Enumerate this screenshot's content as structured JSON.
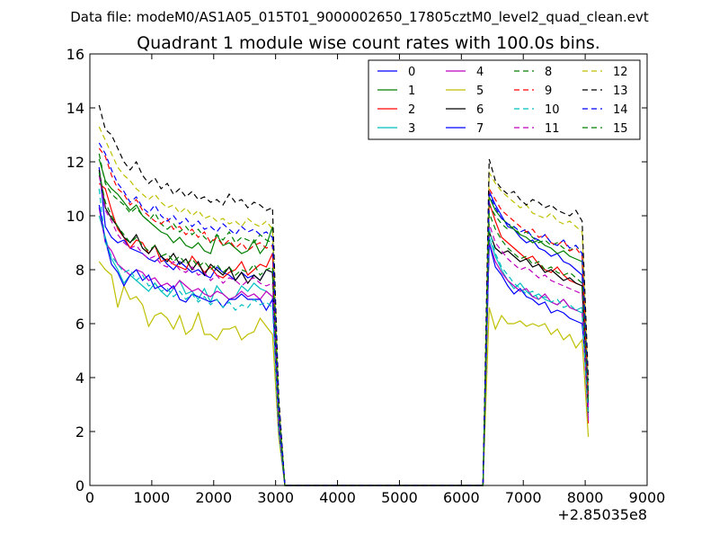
{
  "header": {
    "data_file": "Data file: modeM0/AS1A05_015T01_9000002650_17805cztM0_level2_quad_clean.evt"
  },
  "chart_data": {
    "type": "line",
    "title": "Quadrant 1 module wise count rates with 100.0s bins.",
    "xlabel": "",
    "ylabel": "",
    "x_offset_label": "+2.85035e8",
    "xlim": [
      0,
      9000
    ],
    "ylim": [
      0,
      16
    ],
    "x_ticks": [
      0,
      1000,
      2000,
      3000,
      4000,
      5000,
      6000,
      7000,
      8000,
      9000
    ],
    "y_ticks": [
      0,
      2,
      4,
      6,
      8,
      10,
      12,
      14,
      16
    ],
    "legend_placement": "top-right",
    "legend_columns": 4,
    "grid": false,
    "x": [
      150,
      250,
      350,
      450,
      550,
      650,
      750,
      850,
      950,
      1050,
      1150,
      1250,
      1350,
      1450,
      1550,
      1650,
      1750,
      1850,
      1950,
      2050,
      2150,
      2250,
      2350,
      2450,
      2550,
      2650,
      2750,
      2850,
      2950,
      3050,
      3150,
      3250,
      6250,
      6350,
      6450,
      6550,
      6650,
      6750,
      6850,
      6950,
      7050,
      7150,
      7250,
      7350,
      7450,
      7550,
      7650,
      7750,
      7850,
      7950,
      8050
    ],
    "series": [
      {
        "name": "0",
        "color": "#0000ff",
        "dash": "solid",
        "values": [
          11.8,
          9.6,
          9.2,
          9.0,
          9.1,
          8.8,
          8.7,
          8.6,
          8.4,
          8.3,
          8.5,
          8.2,
          8.0,
          8.3,
          8.1,
          7.9,
          8.0,
          7.8,
          7.7,
          8.1,
          7.9,
          7.8,
          7.6,
          7.9,
          7.7,
          7.8,
          7.6,
          8.0,
          7.9,
          2.5,
          0,
          0,
          0,
          0,
          10.9,
          10.4,
          10.0,
          9.6,
          9.5,
          9.2,
          9.0,
          9.1,
          8.8,
          8.7,
          8.5,
          8.6,
          8.3,
          8.2,
          8.0,
          7.8,
          3.0
        ]
      },
      {
        "name": "1",
        "color": "#008000",
        "dash": "solid",
        "values": [
          12.1,
          11.3,
          11.0,
          10.8,
          10.5,
          10.2,
          10.4,
          10.0,
          9.8,
          9.6,
          9.4,
          9.3,
          9.0,
          9.2,
          8.9,
          8.8,
          9.0,
          8.7,
          8.6,
          9.3,
          8.9,
          9.0,
          8.8,
          8.6,
          8.7,
          9.1,
          8.6,
          8.9,
          9.6,
          3.0,
          0,
          0,
          0,
          0,
          10.7,
          10.2,
          9.9,
          9.7,
          9.5,
          9.3,
          9.2,
          9.0,
          9.1,
          8.9,
          8.8,
          8.6,
          8.7,
          8.5,
          8.4,
          8.3,
          3.5
        ]
      },
      {
        "name": "2",
        "color": "#ff0000",
        "dash": "solid",
        "values": [
          11.2,
          11.0,
          10.2,
          9.5,
          9.2,
          8.8,
          9.1,
          9.0,
          8.6,
          8.9,
          8.3,
          8.4,
          8.2,
          8.1,
          8.0,
          8.5,
          8.2,
          7.9,
          8.1,
          7.8,
          7.7,
          7.9,
          8.0,
          8.3,
          7.8,
          8.0,
          8.2,
          8.1,
          8.6,
          2.8,
          0,
          0,
          0,
          0,
          10.5,
          9.8,
          9.2,
          9.0,
          8.8,
          8.6,
          8.4,
          8.5,
          8.2,
          8.0,
          7.9,
          8.1,
          7.8,
          7.6,
          7.5,
          7.4,
          2.3
        ]
      },
      {
        "name": "3",
        "color": "#00bfbf",
        "dash": "solid",
        "values": [
          10.0,
          9.2,
          8.4,
          8.0,
          7.5,
          7.8,
          7.6,
          7.4,
          7.2,
          7.5,
          7.2,
          7.0,
          7.3,
          7.6,
          7.1,
          7.2,
          6.9,
          7.3,
          6.8,
          7.4,
          7.1,
          6.9,
          7.0,
          7.4,
          7.2,
          7.5,
          7.3,
          7.2,
          7.0,
          2.2,
          0,
          0,
          0,
          0,
          9.2,
          8.5,
          8.0,
          7.6,
          7.3,
          7.5,
          7.2,
          7.0,
          7.1,
          6.9,
          6.8,
          6.7,
          6.9,
          6.6,
          6.5,
          6.6,
          2.5
        ]
      },
      {
        "name": "4",
        "color": "#bf00bf",
        "dash": "solid",
        "values": [
          10.3,
          9.0,
          8.7,
          8.2,
          8.0,
          7.8,
          8.0,
          7.9,
          7.6,
          7.7,
          7.4,
          7.5,
          7.3,
          7.6,
          7.4,
          7.2,
          7.3,
          7.1,
          7.0,
          7.2,
          7.1,
          6.9,
          7.0,
          7.2,
          7.0,
          7.1,
          6.9,
          7.2,
          7.0,
          2.0,
          0,
          0,
          0,
          0,
          9.0,
          8.3,
          7.9,
          7.6,
          7.4,
          7.2,
          7.3,
          7.0,
          6.9,
          7.1,
          6.8,
          6.7,
          6.9,
          6.6,
          6.5,
          6.4,
          2.4
        ]
      },
      {
        "name": "5",
        "color": "#bfbf00",
        "dash": "solid",
        "values": [
          8.3,
          8.0,
          7.8,
          6.6,
          7.4,
          6.9,
          7.0,
          6.7,
          5.9,
          6.3,
          6.4,
          6.2,
          5.8,
          6.3,
          5.6,
          5.8,
          6.4,
          5.6,
          5.6,
          5.4,
          5.8,
          5.8,
          5.9,
          5.4,
          5.6,
          5.7,
          6.2,
          5.9,
          5.6,
          1.8,
          0,
          0,
          0,
          0,
          6.6,
          5.8,
          6.3,
          6.0,
          6.0,
          6.1,
          5.9,
          6.0,
          5.9,
          6.0,
          5.6,
          5.8,
          5.4,
          5.6,
          5.1,
          5.4,
          1.8
        ]
      },
      {
        "name": "6",
        "color": "#000000",
        "dash": "solid",
        "values": [
          11.7,
          10.3,
          9.9,
          9.6,
          9.2,
          9.0,
          9.3,
          8.8,
          8.6,
          8.9,
          8.5,
          8.3,
          8.6,
          8.2,
          8.4,
          8.0,
          8.3,
          7.8,
          8.2,
          8.0,
          7.8,
          8.1,
          7.6,
          7.9,
          7.5,
          7.8,
          7.6,
          8.0,
          7.9,
          2.6,
          0,
          0,
          0,
          0,
          9.4,
          8.8,
          8.6,
          8.7,
          8.5,
          8.3,
          8.4,
          8.1,
          8.2,
          7.9,
          8.0,
          7.8,
          7.6,
          7.7,
          7.5,
          7.4,
          2.7
        ]
      },
      {
        "name": "7",
        "color": "#0000ff",
        "dash": "solid",
        "values": [
          10.4,
          9.1,
          8.2,
          7.9,
          7.4,
          7.8,
          8.0,
          7.6,
          7.8,
          7.3,
          7.4,
          7.2,
          7.4,
          6.9,
          6.8,
          7.1,
          7.0,
          6.9,
          6.8,
          6.9,
          6.6,
          6.9,
          6.9,
          7.1,
          6.9,
          6.9,
          6.9,
          6.5,
          6.9,
          2.1,
          0,
          0,
          0,
          0,
          9.0,
          8.1,
          7.8,
          7.4,
          7.1,
          7.3,
          7.0,
          6.9,
          6.7,
          6.8,
          6.4,
          6.5,
          6.4,
          6.2,
          6.1,
          6.0,
          3.4
        ]
      },
      {
        "name": "8",
        "color": "#008000",
        "dash": "dashed",
        "values": [
          12.3,
          11.2,
          10.8,
          10.6,
          10.4,
          10.1,
          10.3,
          10.0,
          9.8,
          10.1,
          9.7,
          9.5,
          9.7,
          9.4,
          9.6,
          9.3,
          9.5,
          9.2,
          9.0,
          9.3,
          9.1,
          9.4,
          9.0,
          9.2,
          9.1,
          9.0,
          9.3,
          9.1,
          9.0,
          3.0,
          0,
          0,
          0,
          0,
          10.4,
          10.0,
          9.7,
          9.5,
          9.6,
          9.3,
          9.4,
          9.2,
          9.0,
          9.1,
          8.9,
          9.0,
          8.8,
          8.7,
          8.9,
          8.6,
          3.4
        ]
      },
      {
        "name": "9",
        "color": "#ff0000",
        "dash": "dashed",
        "values": [
          12.5,
          12.2,
          11.5,
          11.0,
          10.8,
          10.4,
          10.6,
          10.2,
          10.0,
          9.8,
          9.7,
          9.9,
          9.5,
          9.6,
          9.3,
          9.5,
          9.2,
          9.4,
          9.0,
          9.2,
          8.9,
          9.1,
          8.8,
          9.0,
          8.7,
          8.9,
          9.0,
          8.8,
          8.9,
          2.9,
          0,
          0,
          0,
          0,
          11.0,
          10.6,
          10.2,
          10.0,
          9.8,
          9.6,
          9.4,
          9.5,
          9.2,
          9.3,
          9.0,
          8.9,
          9.1,
          8.7,
          8.8,
          8.5,
          3.2
        ]
      },
      {
        "name": "10",
        "color": "#00bfbf",
        "dash": "dashed",
        "values": [
          11.0,
          9.0,
          8.5,
          8.2,
          7.9,
          8.0,
          7.6,
          7.8,
          7.4,
          7.5,
          7.2,
          7.3,
          7.0,
          7.2,
          6.9,
          7.1,
          6.8,
          7.0,
          6.7,
          6.9,
          6.6,
          6.8,
          6.5,
          6.7,
          6.6,
          6.9,
          6.7,
          6.8,
          6.6,
          2.1,
          0,
          0,
          0,
          0,
          9.5,
          8.6,
          8.1,
          7.8,
          7.5,
          7.3,
          7.1,
          7.2,
          6.9,
          7.0,
          6.8,
          6.9,
          6.6,
          6.7,
          6.5,
          6.4,
          2.6
        ]
      },
      {
        "name": "11",
        "color": "#bf00bf",
        "dash": "dashed",
        "values": [
          11.5,
          10.2,
          9.8,
          9.3,
          9.0,
          8.8,
          8.9,
          8.6,
          8.4,
          8.5,
          8.2,
          8.1,
          8.3,
          8.0,
          7.9,
          8.1,
          7.8,
          7.9,
          7.6,
          7.8,
          7.5,
          7.7,
          7.6,
          7.4,
          7.6,
          7.7,
          7.5,
          7.4,
          7.5,
          2.4,
          0,
          0,
          0,
          0,
          9.7,
          9.0,
          8.7,
          8.4,
          8.2,
          8.0,
          8.1,
          7.9,
          7.7,
          7.8,
          7.6,
          7.5,
          7.4,
          7.3,
          7.2,
          7.1,
          2.9
        ]
      },
      {
        "name": "12",
        "color": "#bfbf00",
        "dash": "dashed",
        "values": [
          13.3,
          12.8,
          12.3,
          11.8,
          11.5,
          11.3,
          11.0,
          10.8,
          10.6,
          10.8,
          10.5,
          10.3,
          10.4,
          10.1,
          10.3,
          10.0,
          10.2,
          9.9,
          10.0,
          9.8,
          9.9,
          9.7,
          9.8,
          9.6,
          9.9,
          9.7,
          9.6,
          9.8,
          9.5,
          3.1,
          0,
          0,
          0,
          0,
          11.6,
          11.2,
          10.9,
          10.7,
          10.5,
          10.3,
          10.4,
          10.1,
          10.0,
          9.9,
          10.1,
          9.8,
          9.7,
          9.8,
          9.6,
          9.4,
          3.7
        ]
      },
      {
        "name": "13",
        "color": "#000000",
        "dash": "dashed",
        "values": [
          14.1,
          13.2,
          13.0,
          12.5,
          12.0,
          11.7,
          12.0,
          11.5,
          11.2,
          11.4,
          11.0,
          11.2,
          10.8,
          11.0,
          10.7,
          10.9,
          10.6,
          10.7,
          10.5,
          10.6,
          10.4,
          10.8,
          10.5,
          10.6,
          10.3,
          10.5,
          10.4,
          10.2,
          10.3,
          3.3,
          0,
          0,
          0,
          0,
          12.1,
          11.3,
          11.0,
          10.8,
          10.9,
          10.6,
          10.4,
          10.6,
          10.5,
          10.3,
          10.4,
          10.2,
          10.1,
          10.0,
          10.2,
          9.8,
          3.9
        ]
      },
      {
        "name": "14",
        "color": "#0000ff",
        "dash": "dashed",
        "values": [
          12.7,
          12.3,
          11.7,
          11.2,
          10.9,
          10.5,
          10.7,
          10.3,
          10.1,
          10.4,
          10.0,
          9.8,
          10.0,
          9.7,
          9.9,
          9.6,
          9.8,
          9.5,
          9.6,
          9.4,
          9.7,
          9.5,
          9.3,
          9.6,
          9.4,
          9.5,
          9.3,
          9.4,
          9.2,
          3.0,
          0,
          0,
          0,
          0,
          10.8,
          10.3,
          9.9,
          9.7,
          9.6,
          9.4,
          9.5,
          9.2,
          9.1,
          9.3,
          9.0,
          8.9,
          9.1,
          8.8,
          8.9,
          8.6,
          3.3
        ]
      },
      {
        "name": "15",
        "color": "#008000",
        "dash": "dashed",
        "values": [
          11.6,
          10.5,
          10.0,
          9.6,
          9.3,
          9.0,
          9.2,
          8.9,
          8.7,
          8.9,
          8.5,
          8.6,
          8.3,
          8.5,
          8.2,
          8.4,
          8.1,
          8.3,
          8.0,
          8.2,
          7.9,
          8.1,
          7.8,
          8.0,
          7.9,
          8.2,
          7.8,
          8.0,
          8.1,
          2.7,
          0,
          0,
          0,
          0,
          10.1,
          9.5,
          9.1,
          8.8,
          8.6,
          8.4,
          8.5,
          8.2,
          8.3,
          8.0,
          8.1,
          7.9,
          7.8,
          7.9,
          7.7,
          7.5,
          3.1
        ]
      }
    ]
  }
}
